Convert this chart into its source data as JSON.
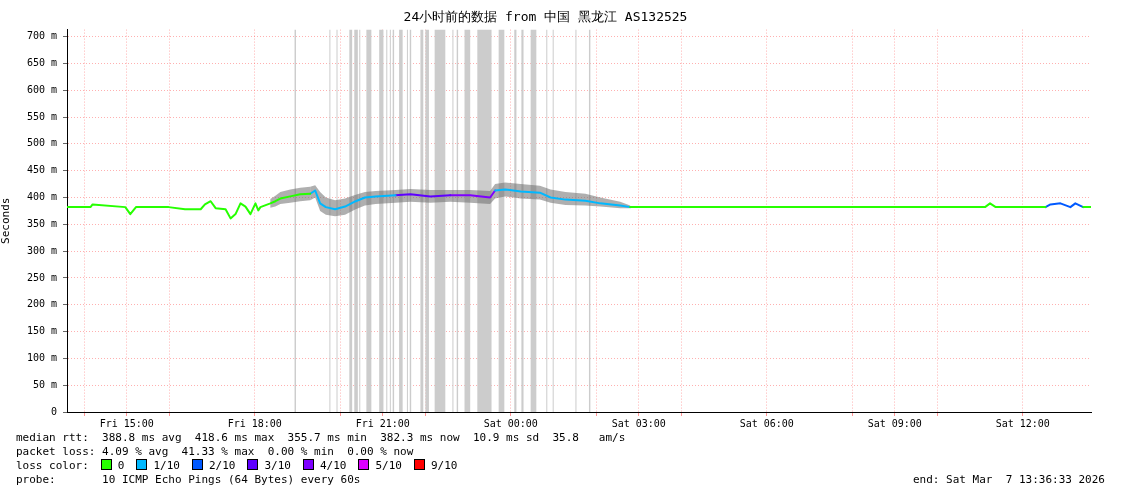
{
  "chart_data": {
    "type": "line",
    "title": "24小时前的数据 from 中国 黑龙江 AS132525",
    "ylabel": "Seconds",
    "x": [
      "2026-03-06T13:37",
      "2026-03-06T14:09",
      "2026-03-06T14:12",
      "2026-03-06T14:58",
      "2026-03-06T15:05",
      "2026-03-06T15:13",
      "2026-03-06T15:59",
      "2026-03-06T16:22",
      "2026-03-06T16:44",
      "2026-03-06T16:50",
      "2026-03-06T16:58",
      "2026-03-06T17:05",
      "2026-03-06T17:19",
      "2026-03-06T17:26",
      "2026-03-06T17:33",
      "2026-03-06T17:40",
      "2026-03-06T17:47",
      "2026-03-06T17:54",
      "2026-03-06T18:01",
      "2026-03-06T18:05",
      "2026-03-06T18:08",
      "2026-03-06T18:22",
      "2026-03-06T18:29",
      "2026-03-06T18:36",
      "2026-03-06T18:50",
      "2026-03-06T19:04",
      "2026-03-06T19:18",
      "2026-03-06T19:25",
      "2026-03-06T19:32",
      "2026-03-06T19:40",
      "2026-03-06T19:53",
      "2026-03-06T20:07",
      "2026-03-06T20:22",
      "2026-03-06T20:35",
      "2026-03-06T20:50",
      "2026-03-06T21:18",
      "2026-03-06T21:39",
      "2026-03-06T22:07",
      "2026-03-06T22:35",
      "2026-03-06T23:03",
      "2026-03-06T23:31",
      "2026-03-06T23:38",
      "2026-03-06T23:52",
      "2026-03-07T00:14",
      "2026-03-07T00:41",
      "2026-03-07T00:56",
      "2026-03-07T01:17",
      "2026-03-07T01:45",
      "2026-03-07T02:06",
      "2026-03-07T02:34",
      "2026-03-07T02:48",
      "2026-03-07T04:27",
      "2026-03-07T06:47",
      "2026-03-07T09:08",
      "2026-03-07T11:07",
      "2026-03-07T11:14",
      "2026-03-07T11:22",
      "2026-03-07T12:32",
      "2026-03-07T12:39",
      "2026-03-07T12:53",
      "2026-03-07T13:07",
      "2026-03-07T13:14",
      "2026-03-07T13:25",
      "2026-03-07T13:36"
    ],
    "xlim": [
      "2026-03-06T13:36",
      "2026-03-07T13:36"
    ],
    "xticks": [
      {
        "value": "2026-03-06T14:00",
        "label": null
      },
      {
        "value": "2026-03-06T15:00",
        "label": "Fri 15:00"
      },
      {
        "value": "2026-03-06T16:00",
        "label": null
      },
      {
        "value": "2026-03-06T18:00",
        "label": "Fri 18:00"
      },
      {
        "value": "2026-03-06T20:00",
        "label": null
      },
      {
        "value": "2026-03-06T21:00",
        "label": "Fri 21:00"
      },
      {
        "value": "2026-03-06T22:00",
        "label": null
      },
      {
        "value": "2026-03-07T00:00",
        "label": "Sat 00:00"
      },
      {
        "value": "2026-03-07T02:00",
        "label": null
      },
      {
        "value": "2026-03-07T03:00",
        "label": "Sat 03:00"
      },
      {
        "value": "2026-03-07T04:00",
        "label": null
      },
      {
        "value": "2026-03-07T06:00",
        "label": "Sat 06:00"
      },
      {
        "value": "2026-03-07T08:00",
        "label": null
      },
      {
        "value": "2026-03-07T09:00",
        "label": "Sat 09:00"
      },
      {
        "value": "2026-03-07T10:00",
        "label": null
      },
      {
        "value": "2026-03-07T12:00",
        "label": "Sat 12:00"
      }
    ],
    "ylim": [
      0,
      713
    ],
    "yticks": [
      0,
      {
        "value": 50,
        "label": "50 m"
      },
      {
        "value": 100,
        "label": "100 m"
      },
      {
        "value": 150,
        "label": "150 m"
      },
      {
        "value": 200,
        "label": "200 m"
      },
      {
        "value": 250,
        "label": "250 m"
      },
      {
        "value": 300,
        "label": "300 m"
      },
      {
        "value": 350,
        "label": "350 m"
      },
      {
        "value": 400,
        "label": "400 m"
      },
      {
        "value": 450,
        "label": "450 m"
      },
      {
        "value": 500,
        "label": "500 m"
      },
      {
        "value": 550,
        "label": "550 m"
      },
      {
        "value": 600,
        "label": "600 m"
      },
      {
        "value": 650,
        "label": "650 m"
      },
      {
        "value": 700,
        "label": "700 m"
      }
    ],
    "grid": true,
    "legend": "bottom",
    "legend_title": "loss color:",
    "series": [
      {
        "name": "0",
        "color": "#26ff00",
        "values": [
          382,
          382,
          387,
          382,
          369,
          382,
          382,
          378,
          378,
          387,
          393,
          380,
          378,
          361,
          369,
          389,
          383,
          369,
          389,
          376,
          382,
          389,
          393,
          398,
          402,
          406,
          407,
          null,
          null,
          null,
          null,
          null,
          null,
          null,
          null,
          null,
          null,
          null,
          null,
          null,
          null,
          null,
          null,
          null,
          null,
          null,
          null,
          null,
          null,
          null,
          382,
          382,
          382,
          382,
          382,
          389,
          382,
          382,
          null,
          null,
          null,
          null,
          382,
          382
        ],
        "lower": [
          null,
          null,
          null,
          null,
          null,
          null,
          null,
          null,
          null,
          null,
          null,
          null,
          null,
          null,
          null,
          null,
          null,
          null,
          null,
          null,
          null,
          381,
          383,
          388,
          390,
          393,
          395,
          null,
          null,
          null,
          null,
          null,
          null,
          null,
          null,
          null,
          null,
          null,
          null,
          null,
          null,
          null,
          null,
          null,
          null,
          null,
          null,
          null,
          null,
          null,
          null,
          null,
          null,
          null,
          null,
          null,
          null,
          null,
          null,
          null,
          null,
          null,
          null,
          null
        ],
        "upper": [
          null,
          null,
          null,
          null,
          null,
          null,
          null,
          null,
          null,
          null,
          null,
          null,
          null,
          null,
          null,
          null,
          null,
          null,
          null,
          null,
          null,
          397,
          403,
          410,
          415,
          418,
          420,
          null,
          null,
          null,
          null,
          null,
          null,
          null,
          null,
          null,
          null,
          null,
          null,
          null,
          null,
          null,
          null,
          null,
          null,
          null,
          null,
          null,
          null,
          null,
          null,
          null,
          null,
          null,
          null,
          null,
          null,
          null,
          null,
          null,
          null,
          null,
          null,
          null
        ]
      },
      {
        "name": "1/10",
        "color": "#00b8ff",
        "values": [
          null,
          null,
          null,
          null,
          null,
          null,
          null,
          null,
          null,
          null,
          null,
          null,
          null,
          null,
          null,
          null,
          null,
          null,
          null,
          null,
          null,
          null,
          null,
          null,
          null,
          null,
          407,
          413,
          389,
          382,
          378,
          383,
          393,
          400,
          402,
          404,
          null,
          null,
          null,
          null,
          null,
          413,
          415,
          411,
          409,
          400,
          396,
          394,
          389,
          385,
          382,
          null,
          null,
          null,
          null,
          null,
          null,
          null,
          null,
          null,
          null,
          null,
          null,
          null
        ],
        "lower": [
          null,
          null,
          null,
          null,
          null,
          null,
          null,
          null,
          null,
          null,
          null,
          null,
          null,
          null,
          null,
          null,
          null,
          null,
          null,
          null,
          null,
          null,
          null,
          null,
          null,
          null,
          395,
          400,
          375,
          368,
          365,
          368,
          378,
          385,
          388,
          390,
          392,
          390,
          392,
          390,
          388,
          398,
          402,
          398,
          396,
          390,
          386,
          385,
          383,
          380,
          380,
          null,
          null,
          null,
          null,
          null,
          null,
          null,
          null,
          null,
          null,
          null,
          null,
          null
        ],
        "upper": [
          null,
          null,
          null,
          null,
          null,
          null,
          null,
          null,
          null,
          null,
          null,
          null,
          null,
          null,
          null,
          null,
          null,
          null,
          null,
          null,
          null,
          null,
          null,
          null,
          null,
          null,
          420,
          423,
          410,
          400,
          395,
          398,
          405,
          410,
          412,
          414,
          416,
          414,
          414,
          414,
          412,
          425,
          428,
          425,
          422,
          415,
          410,
          407,
          400,
          392,
          385,
          null,
          null,
          null,
          null,
          null,
          null,
          null,
          null,
          null,
          null,
          null,
          null,
          null
        ]
      },
      {
        "name": "2/10",
        "color": "#0059ff",
        "values": [
          null,
          null,
          null,
          null,
          null,
          null,
          null,
          null,
          null,
          null,
          null,
          null,
          null,
          null,
          null,
          null,
          null,
          null,
          null,
          null,
          null,
          null,
          null,
          null,
          null,
          null,
          null,
          null,
          null,
          null,
          null,
          null,
          null,
          null,
          null,
          null,
          null,
          null,
          null,
          null,
          null,
          null,
          null,
          null,
          null,
          null,
          null,
          null,
          null,
          null,
          null,
          null,
          null,
          null,
          null,
          null,
          null,
          382,
          387,
          389,
          382,
          389,
          382,
          null
        ]
      },
      {
        "name": "3/10",
        "color": "#5e00ff",
        "values": [
          null,
          null,
          null,
          null,
          null,
          null,
          null,
          null,
          null,
          null,
          null,
          null,
          null,
          null,
          null,
          null,
          null,
          null,
          null,
          null,
          null,
          null,
          null,
          null,
          null,
          null,
          null,
          null,
          null,
          null,
          null,
          null,
          null,
          null,
          null,
          404,
          406,
          402,
          404,
          null,
          null,
          null,
          null,
          null,
          null,
          null,
          null,
          null,
          null,
          null,
          null,
          null,
          null,
          null,
          null,
          null,
          null,
          null,
          null,
          null,
          null,
          null,
          null,
          null
        ]
      },
      {
        "name": "4/10",
        "color": "#7e00ff",
        "values": [
          null,
          null,
          null,
          null,
          null,
          null,
          null,
          null,
          null,
          null,
          null,
          null,
          null,
          null,
          null,
          null,
          null,
          null,
          null,
          null,
          null,
          null,
          null,
          null,
          null,
          null,
          null,
          null,
          null,
          null,
          null,
          null,
          null,
          null,
          null,
          null,
          null,
          null,
          404,
          404,
          400,
          413,
          null,
          null,
          null,
          null,
          null,
          null,
          null,
          null,
          null,
          null,
          null,
          null,
          null,
          null,
          null,
          null,
          null,
          null,
          null,
          null,
          null,
          null
        ]
      },
      {
        "name": "5/10",
        "color": "#dd00ff",
        "values": [
          null,
          null,
          null,
          null,
          null,
          null,
          null,
          null,
          null,
          null,
          null,
          null,
          null,
          null,
          null,
          null,
          null,
          null,
          null,
          null,
          null,
          null,
          null,
          null,
          null,
          null,
          null,
          null,
          null,
          null,
          null,
          null,
          null,
          null,
          null,
          null,
          null,
          null,
          null,
          null,
          null,
          null,
          null,
          null,
          null,
          null,
          null,
          null,
          null,
          null,
          null,
          null,
          null,
          null,
          null,
          null,
          null,
          null,
          null,
          null,
          null,
          null,
          null,
          null
        ]
      },
      {
        "name": "9/10",
        "color": "#ff0000",
        "values": [
          null,
          null,
          null,
          null,
          null,
          null,
          null,
          null,
          null,
          null,
          null,
          null,
          null,
          null,
          null,
          null,
          null,
          null,
          null,
          null,
          null,
          null,
          null,
          null,
          null,
          null,
          null,
          null,
          null,
          null,
          null,
          null,
          null,
          null,
          null,
          null,
          null,
          null,
          null,
          null,
          null,
          null,
          null,
          null,
          null,
          null,
          null,
          null,
          null,
          null,
          null,
          null,
          null,
          null,
          null,
          null,
          null,
          null,
          null,
          null,
          null,
          null,
          null,
          null
        ]
      }
    ],
    "bands": [
      {
        "axis": "x",
        "from": "2026-03-06T18:56",
        "to": "2026-03-06T18:58"
      },
      {
        "axis": "x",
        "from": "2026-03-06T19:45",
        "to": "2026-03-06T19:46"
      },
      {
        "axis": "x",
        "from": "2026-03-06T19:55",
        "to": "2026-03-06T19:56"
      },
      {
        "axis": "x",
        "from": "2026-03-06T20:13",
        "to": "2026-03-06T20:17"
      },
      {
        "axis": "x",
        "from": "2026-03-06T20:20",
        "to": "2026-03-06T20:25"
      },
      {
        "axis": "x",
        "from": "2026-03-06T20:27",
        "to": "2026-03-06T20:28"
      },
      {
        "axis": "x",
        "from": "2026-03-06T20:37",
        "to": "2026-03-06T20:44"
      },
      {
        "axis": "x",
        "from": "2026-03-06T20:55",
        "to": "2026-03-06T21:01"
      },
      {
        "axis": "x",
        "from": "2026-03-06T21:05",
        "to": "2026-03-06T21:06"
      },
      {
        "axis": "x",
        "from": "2026-03-06T21:10",
        "to": "2026-03-06T21:11"
      },
      {
        "axis": "x",
        "from": "2026-03-06T21:14",
        "to": "2026-03-06T21:16"
      },
      {
        "axis": "x",
        "from": "2026-03-06T21:23",
        "to": "2026-03-06T21:28"
      },
      {
        "axis": "x",
        "from": "2026-03-06T21:34",
        "to": "2026-03-06T21:35"
      },
      {
        "axis": "x",
        "from": "2026-03-06T21:38",
        "to": "2026-03-06T21:40"
      },
      {
        "axis": "x",
        "from": "2026-03-06T21:53",
        "to": "2026-03-06T21:57"
      },
      {
        "axis": "x",
        "from": "2026-03-06T22:00",
        "to": "2026-03-06T22:05"
      },
      {
        "axis": "x",
        "from": "2026-03-06T22:13",
        "to": "2026-03-06T22:28"
      },
      {
        "axis": "x",
        "from": "2026-03-06T22:38",
        "to": "2026-03-06T22:39"
      },
      {
        "axis": "x",
        "from": "2026-03-06T22:44",
        "to": "2026-03-06T22:46"
      },
      {
        "axis": "x",
        "from": "2026-03-06T22:55",
        "to": "2026-03-06T23:03"
      },
      {
        "axis": "x",
        "from": "2026-03-06T23:13",
        "to": "2026-03-06T23:33"
      },
      {
        "axis": "x",
        "from": "2026-03-06T23:43",
        "to": "2026-03-06T23:51"
      },
      {
        "axis": "x",
        "from": "2026-03-07T00:05",
        "to": "2026-03-07T00:08"
      },
      {
        "axis": "x",
        "from": "2026-03-07T00:15",
        "to": "2026-03-07T00:18"
      },
      {
        "axis": "x",
        "from": "2026-03-07T00:28",
        "to": "2026-03-07T00:36"
      },
      {
        "axis": "x",
        "from": "2026-03-07T00:50",
        "to": "2026-03-07T00:51"
      },
      {
        "axis": "x",
        "from": "2026-03-07T00:59",
        "to": "2026-03-07T01:00"
      },
      {
        "axis": "x",
        "from": "2026-03-07T01:31",
        "to": "2026-03-07T01:32"
      },
      {
        "axis": "x",
        "from": "2026-03-07T01:50",
        "to": "2026-03-07T01:52"
      }
    ],
    "annotations": [
      "median rtt:  388.8 ms avg  418.6 ms max  355.7 ms min  382.3 ms now  10.9 ms sd  35.8   am/s",
      "packet loss: 4.09 % avg  41.33 % max  0.00 % min  0.00 % now",
      "probe:       10 ICMP Echo Pings (64 Bytes) every 60s",
      "end: Sat Mar  7 13:36:33 2026"
    ]
  }
}
